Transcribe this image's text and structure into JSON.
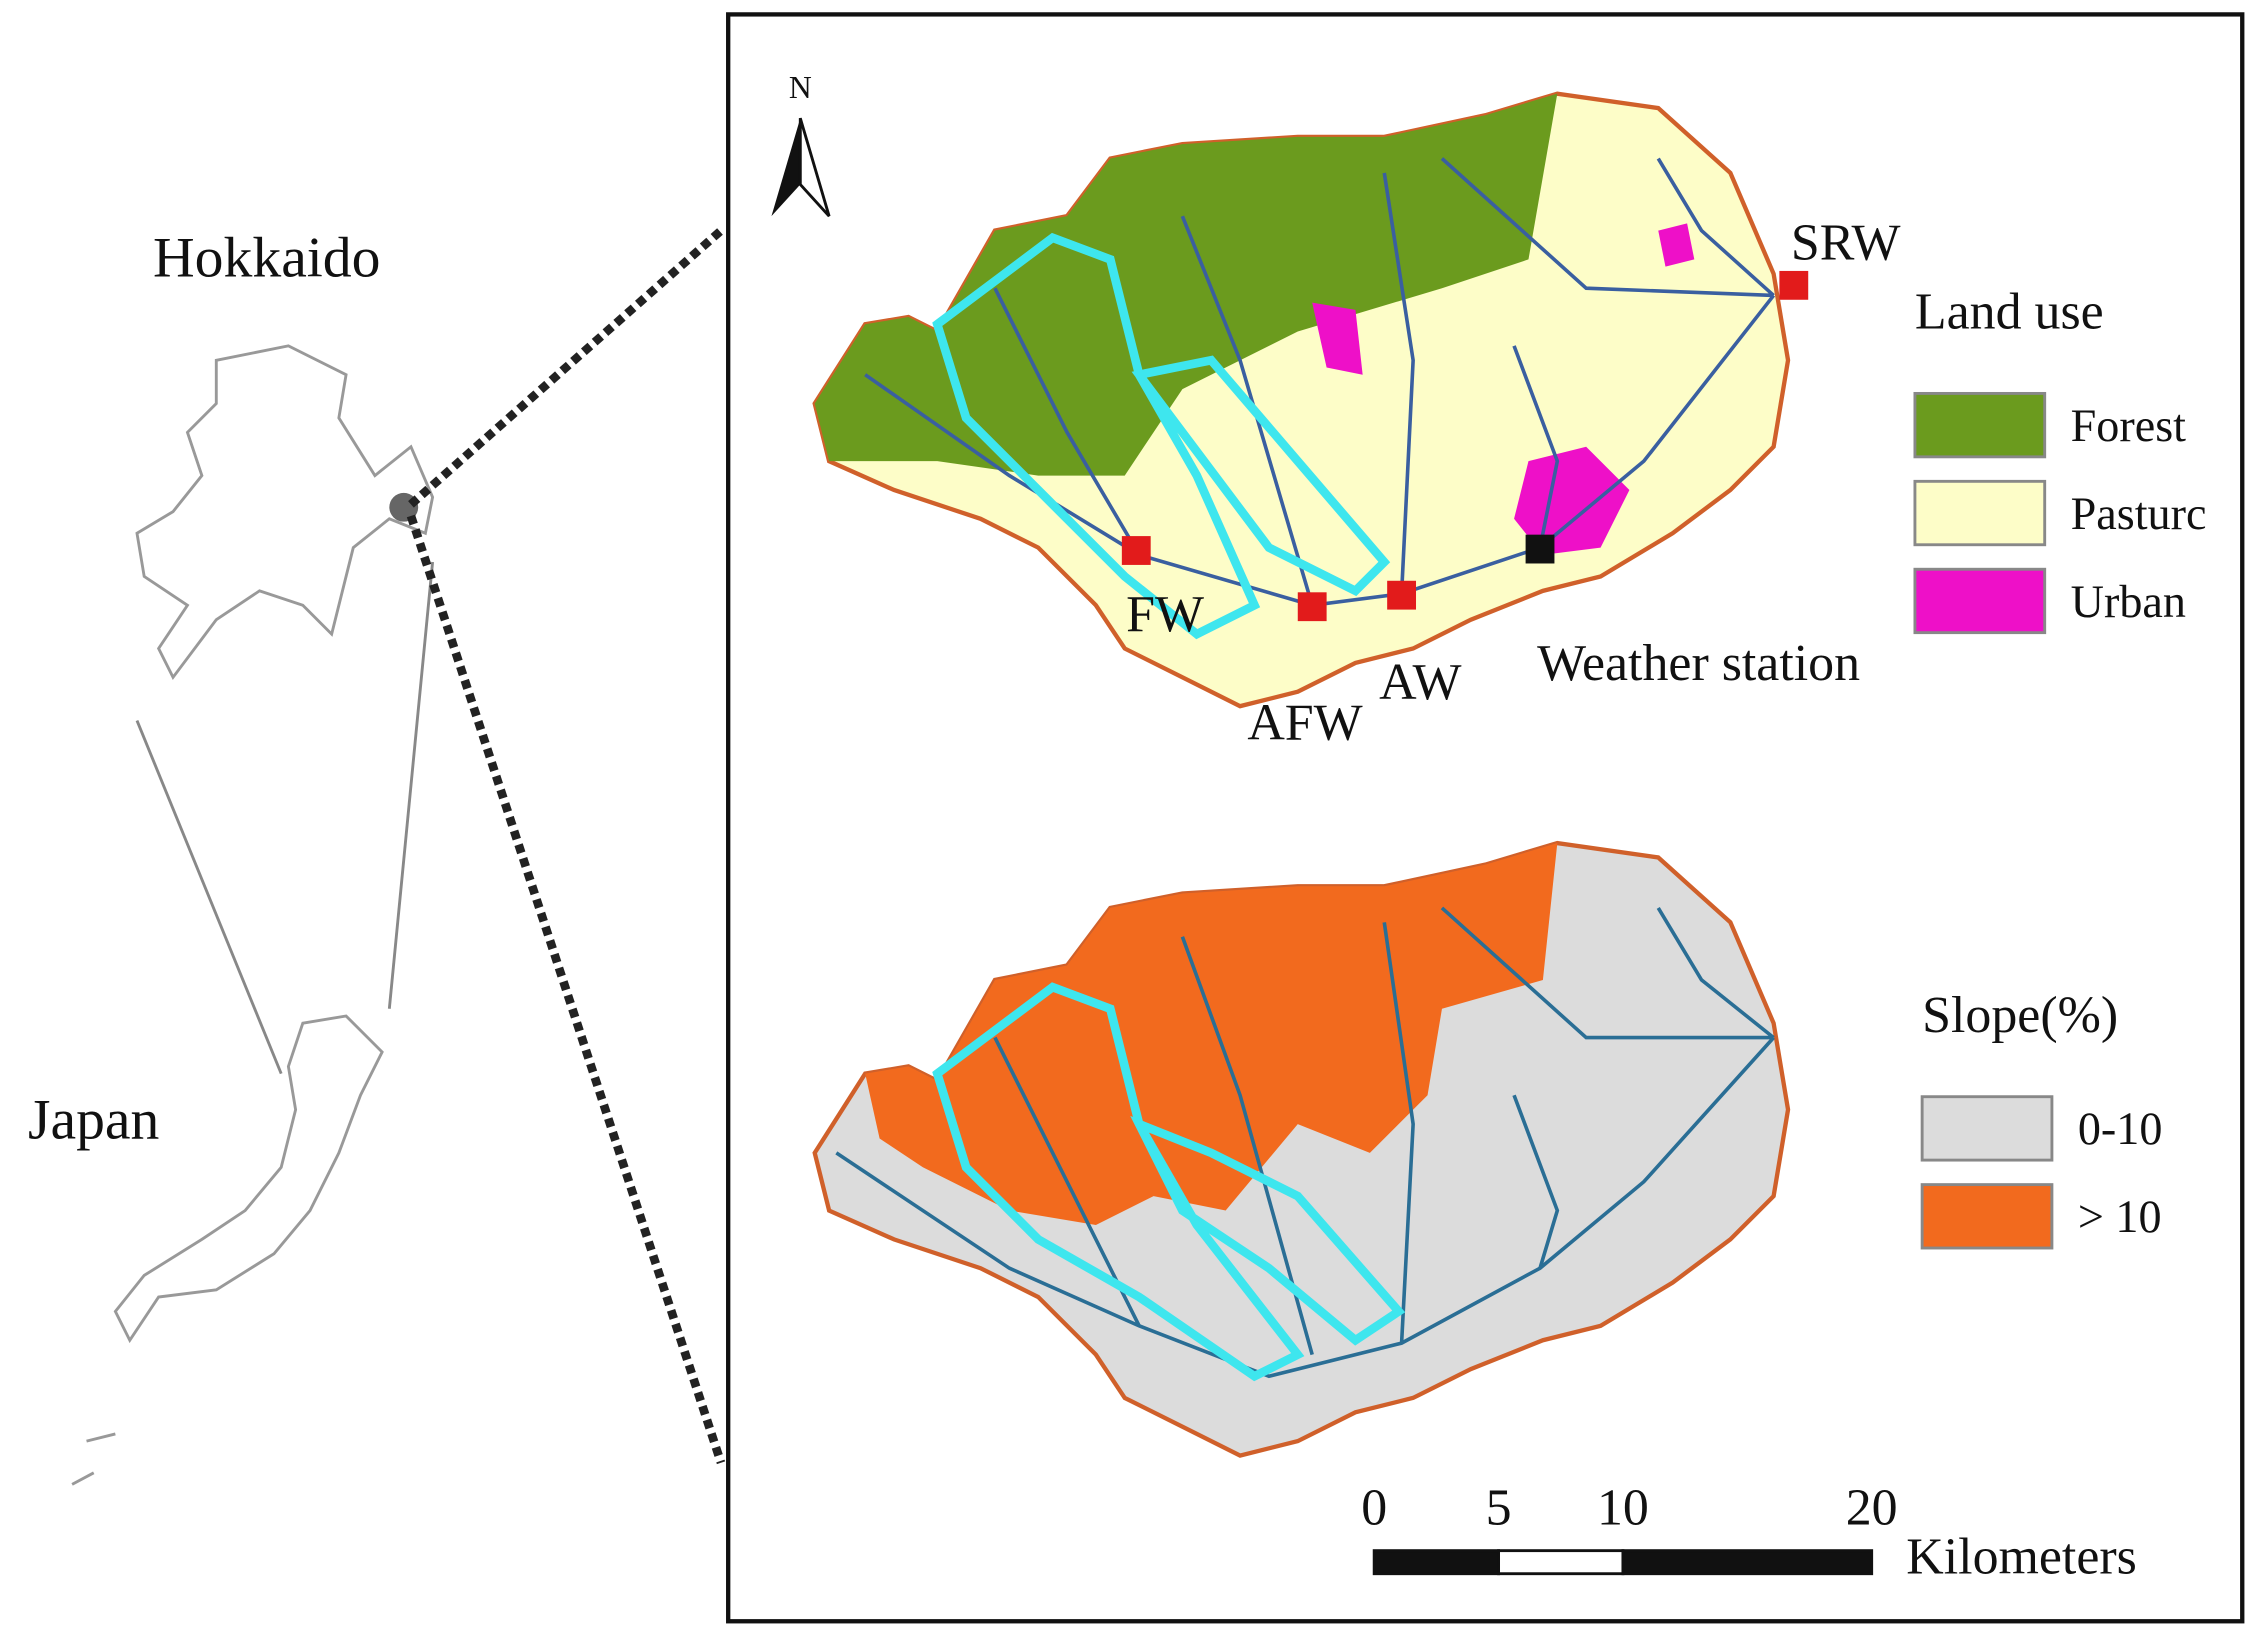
{
  "overview": {
    "hokkaido": "Hokkaido",
    "japan": "Japan"
  },
  "north_arrow": "N",
  "sites": {
    "srw": "SRW",
    "fw": "FW",
    "afw": "AFW",
    "aw": "AW",
    "weather": "Weather station"
  },
  "land_use": {
    "title": "Land use",
    "items": [
      {
        "label": "Forest",
        "color": "#6b9b1e"
      },
      {
        "label": "Pasturc",
        "color": "#fdfdc8"
      },
      {
        "label": "Urban",
        "color": "#ee10c8"
      }
    ]
  },
  "slope": {
    "title": "Slope(%)",
    "items": [
      {
        "label": "0-10",
        "color": "#dcdcdc"
      },
      {
        "label": "> 10",
        "color": "#f26a1e"
      }
    ]
  },
  "scale_bar": {
    "ticks": [
      0,
      5,
      10,
      20
    ],
    "unit": "Kilometers"
  }
}
